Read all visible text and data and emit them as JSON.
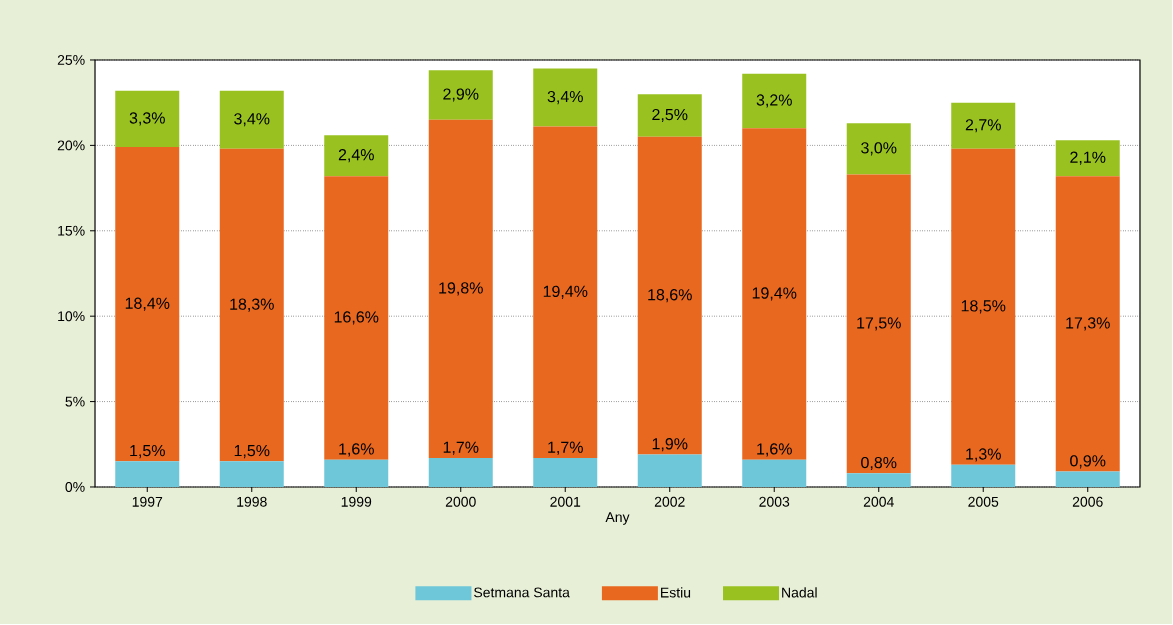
{
  "chart_data": {
    "type": "bar",
    "stacked": true,
    "xlabel": "Any",
    "categories": [
      "1997",
      "1998",
      "1999",
      "2000",
      "2001",
      "2002",
      "2003",
      "2004",
      "2005",
      "2006"
    ],
    "series": [
      {
        "name": "Setmana Santa",
        "color": "#6ec6d9",
        "values": [
          1.5,
          1.5,
          1.6,
          1.7,
          1.7,
          1.9,
          1.6,
          0.8,
          1.3,
          0.9
        ],
        "value_labels": [
          "1,5%",
          "1,5%",
          "1,6%",
          "1,7%",
          "1,7%",
          "1,9%",
          "1,6%",
          "0,8%",
          "1,3%",
          "0,9%"
        ]
      },
      {
        "name": "Estiu",
        "color": "#e96820",
        "values": [
          18.4,
          18.3,
          16.6,
          19.8,
          19.4,
          18.6,
          19.4,
          17.5,
          18.5,
          17.3
        ],
        "value_labels": [
          "18,4%",
          "18,3%",
          "16,6%",
          "19,8%",
          "19,4%",
          "18,6%",
          "19,4%",
          "17,5%",
          "18,5%",
          "17,3%"
        ]
      },
      {
        "name": "Nadal",
        "color": "#99c221",
        "values": [
          3.3,
          3.4,
          2.4,
          2.9,
          3.4,
          2.5,
          3.2,
          3.0,
          2.7,
          2.1
        ],
        "value_labels": [
          "3,3%",
          "3,4%",
          "2,4%",
          "2,9%",
          "3,4%",
          "2,5%",
          "3,2%",
          "3,0%",
          "2,7%",
          "2,1%"
        ]
      }
    ],
    "ylim": [
      0,
      25
    ],
    "yticks": [
      {
        "value": 0,
        "label": "0%"
      },
      {
        "value": 5,
        "label": "5%"
      },
      {
        "value": 10,
        "label": "10%"
      },
      {
        "value": 15,
        "label": "15%"
      },
      {
        "value": 20,
        "label": "20%"
      },
      {
        "value": 25,
        "label": "25%"
      }
    ],
    "grid": "y",
    "legend": "bottom"
  }
}
